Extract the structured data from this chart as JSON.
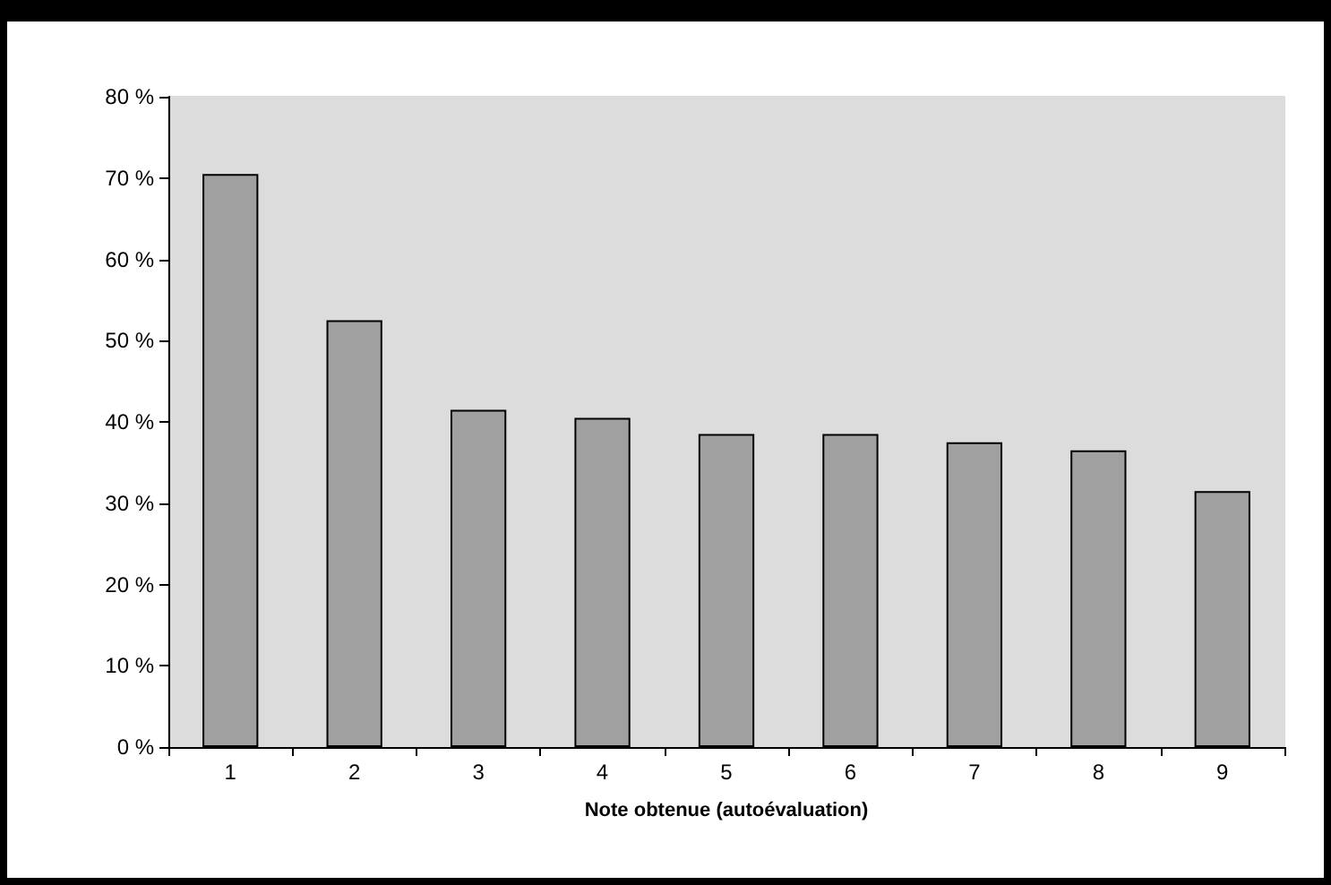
{
  "chart_data": {
    "type": "bar",
    "xlabel": "Note obtenue (autoévaluation)",
    "categories": [
      "1",
      "2",
      "3",
      "4",
      "5",
      "6",
      "7",
      "8",
      "9"
    ],
    "values": [
      70.5,
      52.5,
      41.5,
      40.5,
      38.5,
      38.5,
      37.5,
      36.5,
      31.5
    ],
    "color": "#a0a0a0",
    "ylim": [
      0,
      80
    ],
    "yticks": [
      {
        "value": 0,
        "label": "0 %"
      },
      {
        "value": 10,
        "label": "10 %"
      },
      {
        "value": 20,
        "label": "20 %"
      },
      {
        "value": 30,
        "label": "30 %"
      },
      {
        "value": 40,
        "label": "40 %"
      },
      {
        "value": 50,
        "label": "50 %"
      },
      {
        "value": 60,
        "label": "60 %"
      },
      {
        "value": 70,
        "label": "70 %"
      },
      {
        "value": 80,
        "label": "80 %"
      }
    ],
    "grid": false
  }
}
